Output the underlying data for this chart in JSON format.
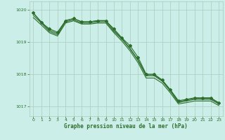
{
  "background_color": "#cceee8",
  "grid_color": "#aaccbb",
  "line_color": "#2d6e2d",
  "xlabel": "Graphe pression niveau de la mer (hPa)",
  "xlabel_color": "#2d6e2d",
  "ylim": [
    1016.7,
    1020.25
  ],
  "xlim": [
    -0.5,
    23.5
  ],
  "yticks": [
    1017,
    1018,
    1019,
    1020
  ],
  "xticks": [
    0,
    1,
    2,
    3,
    4,
    5,
    6,
    7,
    8,
    9,
    10,
    11,
    12,
    13,
    14,
    15,
    16,
    17,
    18,
    19,
    20,
    21,
    22,
    23
  ],
  "series": [
    [
      1019.9,
      1019.6,
      1019.4,
      1019.3,
      1019.65,
      1019.72,
      1019.62,
      1019.62,
      1019.65,
      1019.65,
      1019.4,
      1019.12,
      1018.88,
      1018.52,
      1018.0,
      1018.0,
      1017.82,
      1017.52,
      1017.18,
      1017.22,
      1017.27,
      1017.27,
      1017.27,
      1017.12
    ],
    [
      1019.82,
      1019.58,
      1019.32,
      1019.22,
      1019.62,
      1019.68,
      1019.58,
      1019.58,
      1019.62,
      1019.62,
      1019.32,
      1019.08,
      1018.78,
      1018.42,
      1017.95,
      1017.95,
      1017.78,
      1017.48,
      1017.12,
      1017.17,
      1017.22,
      1017.22,
      1017.22,
      1017.08
    ],
    [
      1019.75,
      1019.52,
      1019.28,
      1019.18,
      1019.58,
      1019.65,
      1019.55,
      1019.55,
      1019.58,
      1019.58,
      1019.28,
      1019.02,
      1018.72,
      1018.35,
      1017.88,
      1017.88,
      1017.72,
      1017.42,
      1017.08,
      1017.12,
      1017.17,
      1017.17,
      1017.17,
      1017.03
    ],
    [
      1019.88,
      1019.62,
      1019.36,
      1019.26,
      1019.66,
      1019.72,
      1019.62,
      1019.62,
      1019.66,
      1019.66,
      1019.36,
      1019.1,
      1018.8,
      1018.44,
      1017.98,
      1017.98,
      1017.8,
      1017.5,
      1017.15,
      1017.2,
      1017.25,
      1017.25,
      1017.25,
      1017.1
    ]
  ],
  "main_series_idx": 0,
  "marker": "D",
  "marker_size": 2.0,
  "line_width": 0.8
}
